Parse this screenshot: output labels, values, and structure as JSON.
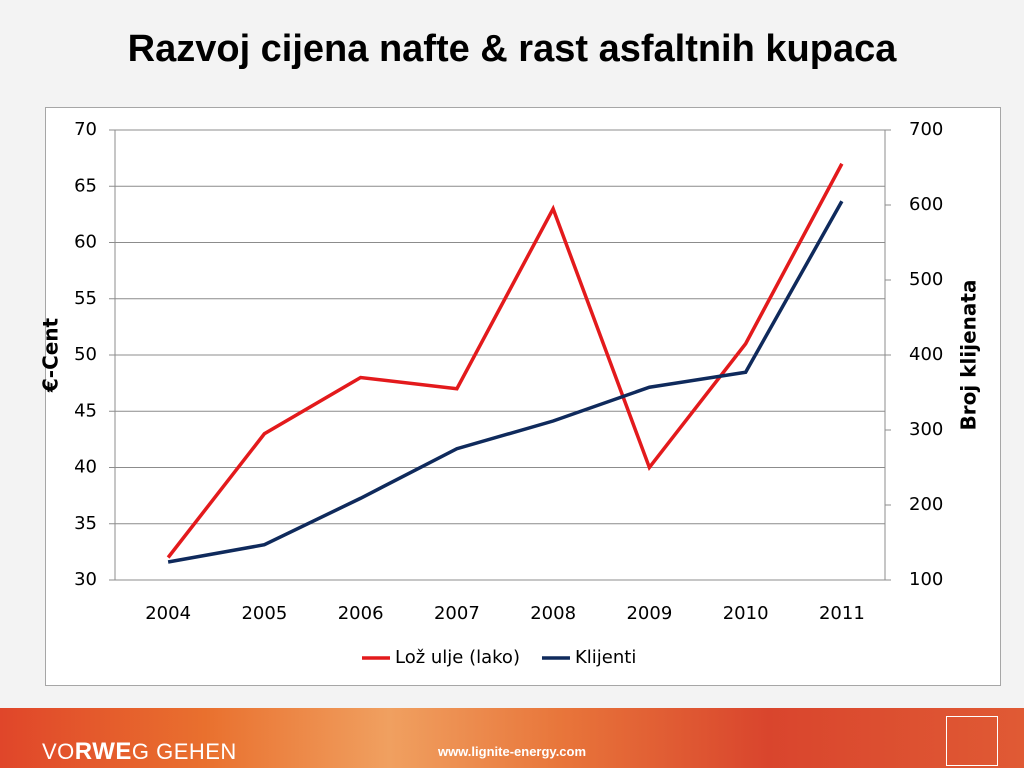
{
  "slide_title": "Razvoj cijena nafte & rast asfaltnih kupaca",
  "chart_data": {
    "type": "line",
    "categories": [
      "2004",
      "2005",
      "2006",
      "2007",
      "2008",
      "2009",
      "2010",
      "2011"
    ],
    "y_label": "€-Cent",
    "y2_label": "Broj klijenata",
    "ylim": [
      30,
      70
    ],
    "yticks": [
      30,
      35,
      40,
      45,
      50,
      55,
      60,
      65,
      70
    ],
    "y2lim": [
      100,
      700
    ],
    "y2ticks": [
      100,
      200,
      300,
      400,
      500,
      600,
      700
    ],
    "grid": true,
    "legend": "bottom",
    "series": [
      {
        "name": "Lož ulje (lako)",
        "color": "#e31a1c",
        "values": [
          32,
          43,
          48,
          47,
          63,
          40,
          51,
          67
        ]
      },
      {
        "name": "Klijenti",
        "color": "#0f2a5c",
        "axis": "y2",
        "values": [
          124,
          147,
          209,
          275,
          312,
          357,
          377,
          605
        ]
      }
    ]
  },
  "footer": {
    "slogan_start": "VO",
    "slogan_brand": "RWE",
    "slogan_end": "G GEHEN",
    "url": "www.lignite-energy.com"
  }
}
